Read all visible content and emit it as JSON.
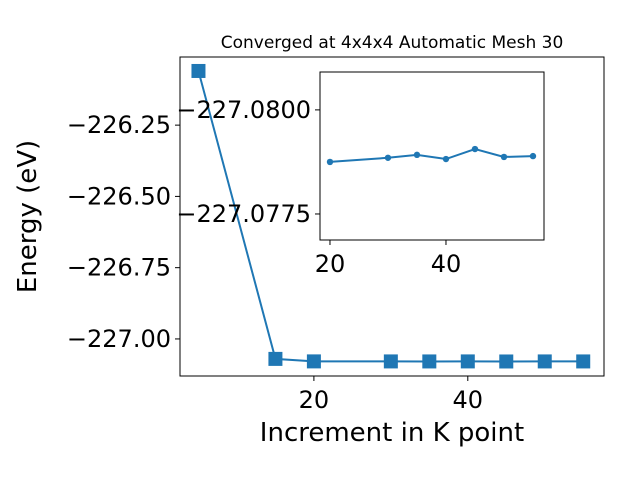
{
  "chart_data": [
    {
      "type": "line",
      "title": "Converged at 4x4x4 Automatic Mesh 30",
      "xlabel": "Increment in K point",
      "ylabel": "Energy (eV)",
      "x": [
        5,
        15,
        20,
        30,
        35,
        40,
        45,
        50,
        55
      ],
      "series": [
        {
          "color": "#1f77b4",
          "marker": "square",
          "values": [
            -226.06,
            -227.07,
            -227.07875,
            -227.07885,
            -227.07892,
            -227.07882,
            -227.07906,
            -227.07887,
            -227.07889
          ]
        }
      ],
      "xlim": [
        2.6,
        57.7
      ],
      "xticks": [
        20,
        40
      ],
      "ylim": [
        -227.13,
        -226.011
      ],
      "yticks": [
        {
          "value": -227.0,
          "label": "−227.00"
        },
        {
          "value": -226.75,
          "label": "−226.75"
        },
        {
          "value": -226.5,
          "label": "−226.50"
        },
        {
          "value": -226.25,
          "label": "−226.25"
        }
      ]
    },
    {
      "type": "line",
      "x": [
        20,
        30,
        35,
        40,
        45,
        50,
        55
      ],
      "series": [
        {
          "color": "#1f77b4",
          "marker": "circle",
          "values": [
            -227.07875,
            -227.07885,
            -227.07892,
            -227.07882,
            -227.07906,
            -227.07887,
            -227.07889
          ]
        }
      ],
      "xlim": [
        18.28,
        56.9
      ],
      "xticks": [
        20,
        40
      ],
      "ylim": [
        -227.076875,
        -227.08091
      ],
      "yticks": [
        {
          "value": -227.0775,
          "label": "−227.0775"
        },
        {
          "value": -227.08,
          "label": "−227.0800"
        }
      ]
    }
  ]
}
